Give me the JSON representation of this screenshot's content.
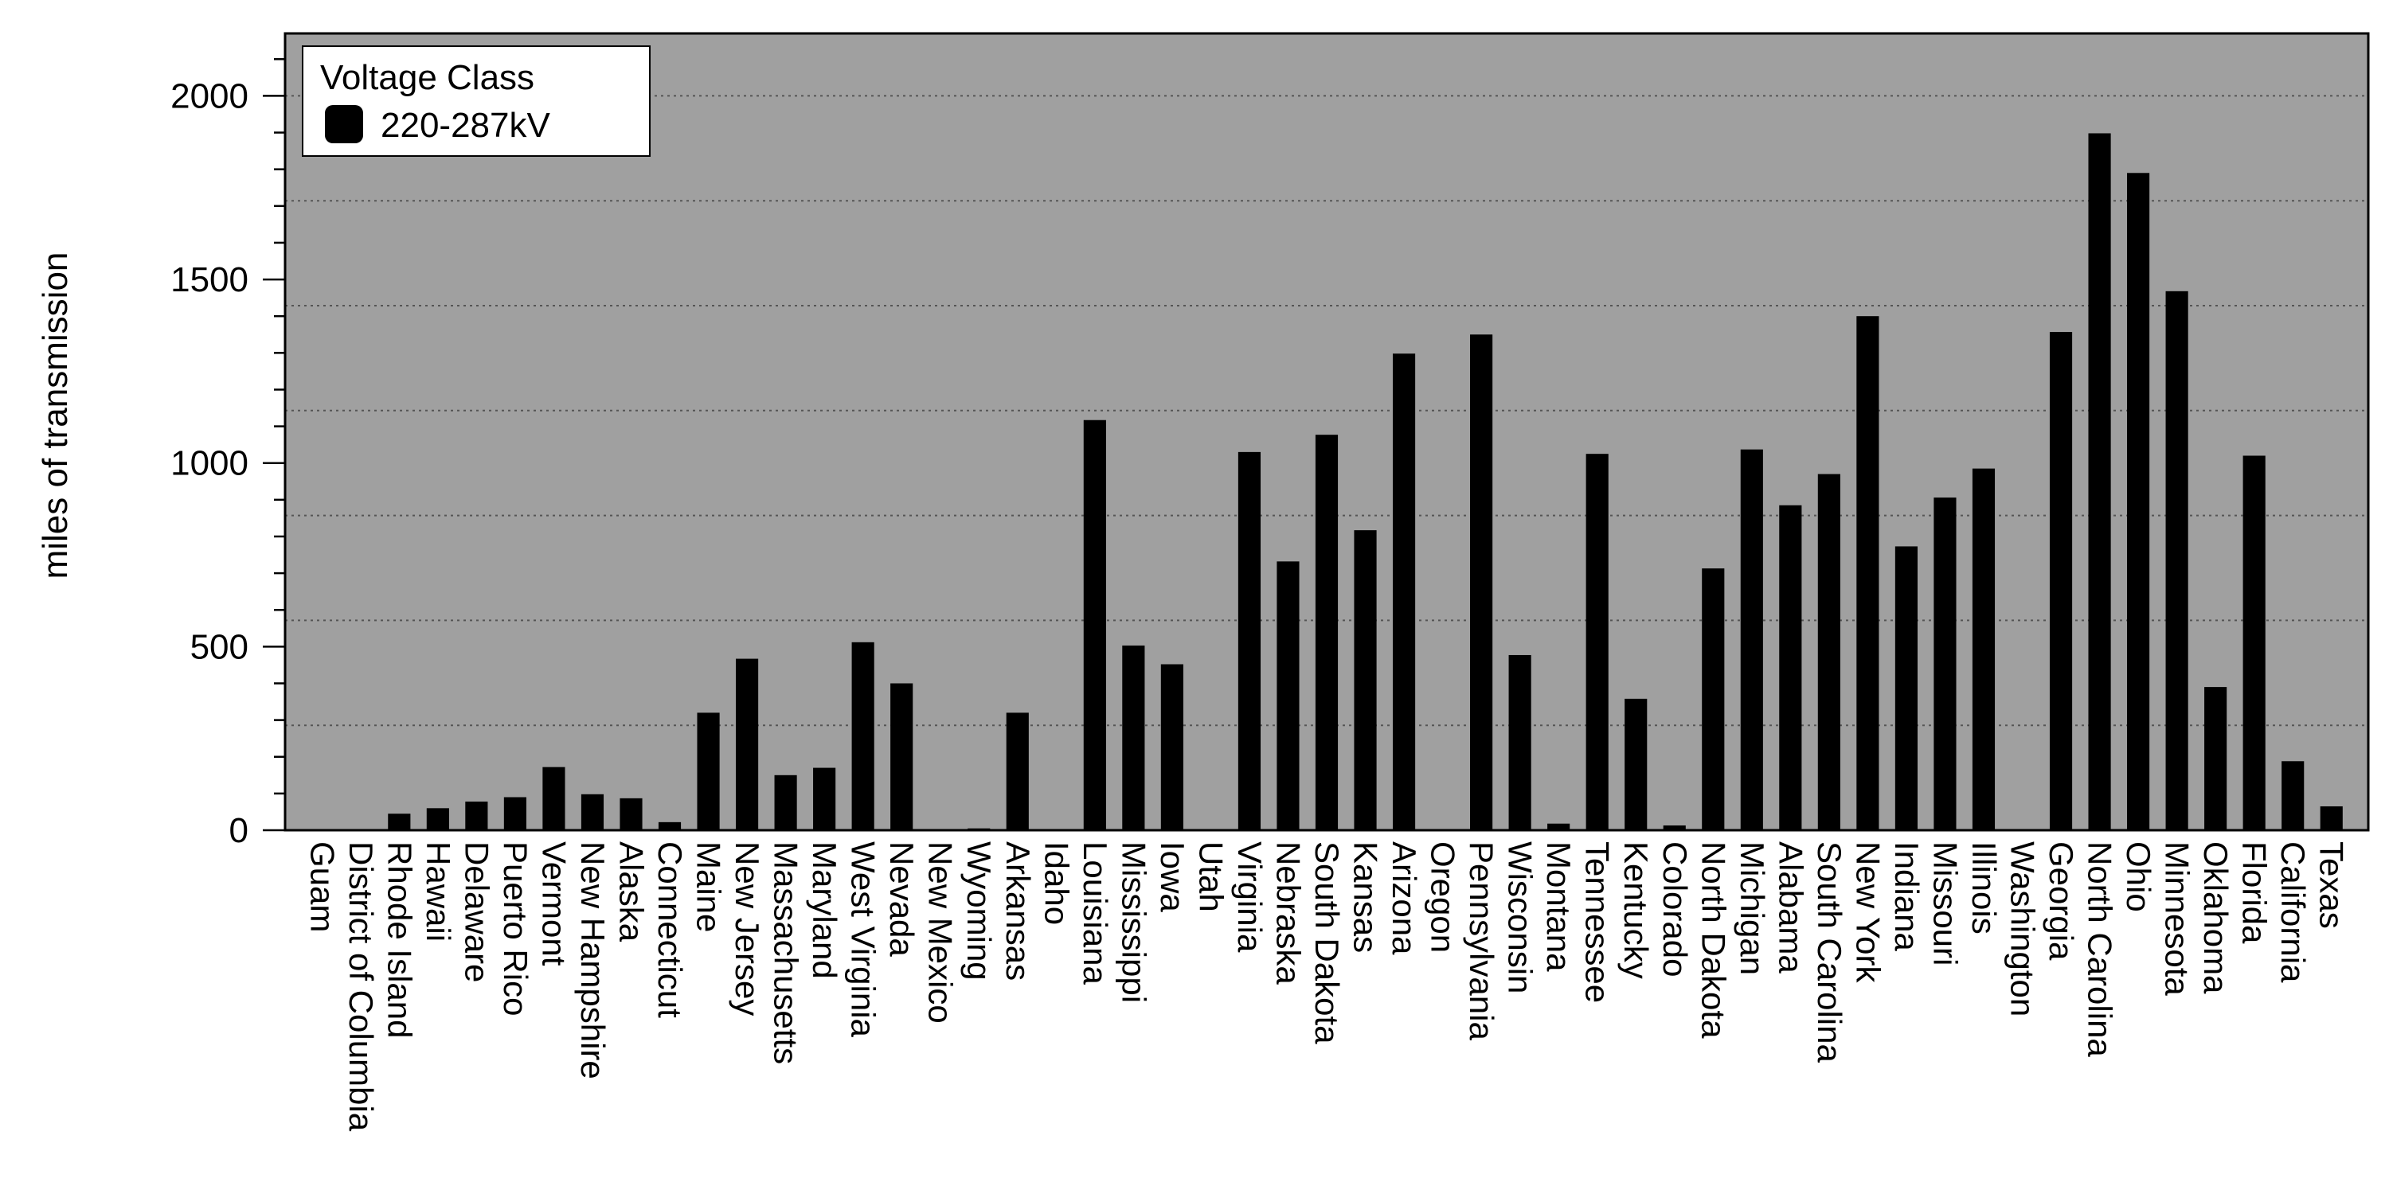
{
  "chart_data": {
    "type": "bar",
    "title": "",
    "xlabel": "",
    "ylabel": "miles of transmission",
    "ylim": [
      0,
      2170
    ],
    "yticks": [
      0,
      500,
      1000,
      1500,
      2000
    ],
    "grid": "horizontal dotted",
    "legend": {
      "title": "Voltage Class",
      "position": "top-left"
    },
    "colors": {
      "background": "#a0a0a0",
      "bar": "#000000",
      "grid": "#555555"
    },
    "categories": [
      "Guam",
      "District of Columbia",
      "Rhode Island",
      "Hawaii",
      "Delaware",
      "Puerto Rico",
      "Vermont",
      "New Hampshire",
      "Alaska",
      "Connecticut",
      "Maine",
      "New Jersey",
      "Massachusetts",
      "Maryland",
      "West Virginia",
      "Nevada",
      "New Mexico",
      "Wyoming",
      "Arkansas",
      "Idaho",
      "Louisiana",
      "Mississippi",
      "Iowa",
      "Utah",
      "Virginia",
      "Nebraska",
      "South Dakota",
      "Kansas",
      "Arizona",
      "Oregon",
      "Pennsylvania",
      "Wisconsin",
      "Montana",
      "Tennessee",
      "Kentucky",
      "Colorado",
      "North Dakota",
      "Michigan",
      "Alabama",
      "South Carolina",
      "New York",
      "Indiana",
      "Missouri",
      "Illinois",
      "Washington",
      "Georgia",
      "North Carolina",
      "Ohio",
      "Minnesota",
      "Oklahoma",
      "Florida",
      "California",
      "Texas"
    ],
    "series": [
      {
        "name": "220-287kV",
        "values": [
          0,
          0,
          45,
          60,
          78,
          90,
          172,
          98,
          87,
          22,
          320,
          467,
          150,
          170,
          512,
          400,
          0,
          5,
          320,
          0,
          1117,
          503,
          452,
          0,
          1030,
          732,
          1077,
          817,
          1298,
          0,
          1350,
          477,
          18,
          1025,
          358,
          13,
          713,
          1037,
          885,
          970,
          1400,
          773,
          906,
          985,
          0,
          1357,
          1898,
          1790,
          1468,
          390,
          1020,
          188,
          65
        ]
      }
    ]
  }
}
